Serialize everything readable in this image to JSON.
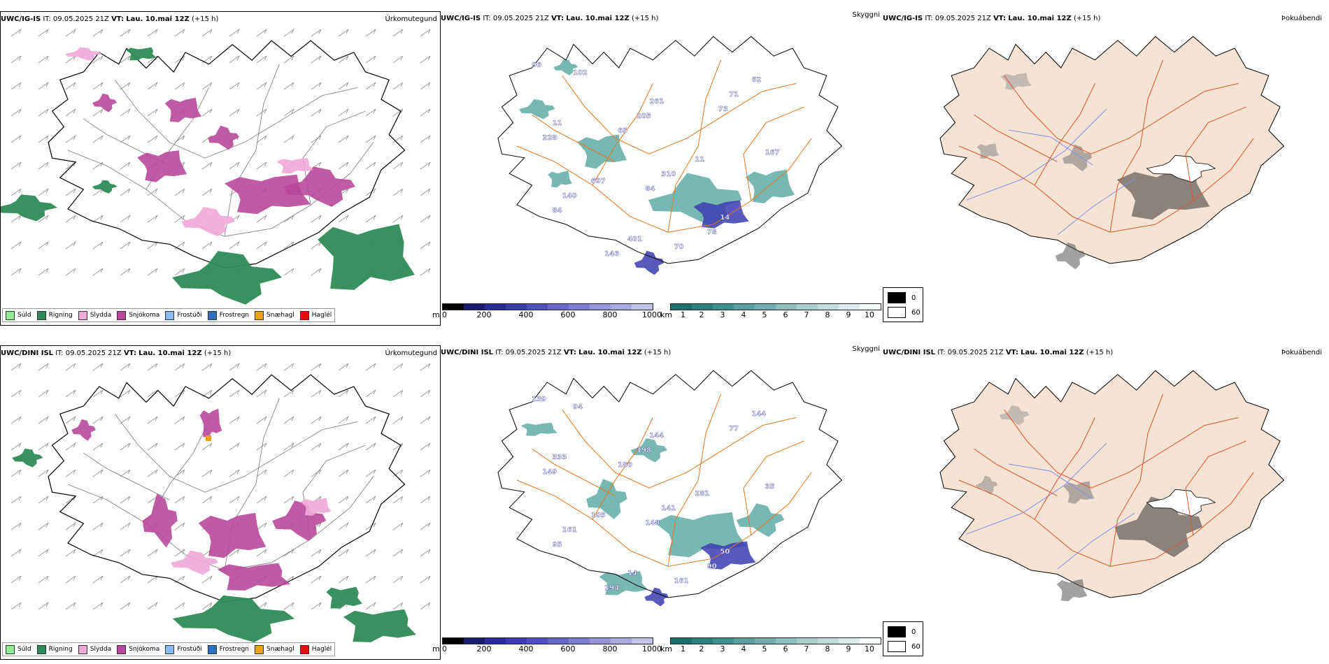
{
  "panels": [
    {
      "id": "top-left",
      "model": "UWC/IG-IS",
      "it_label": "IT:",
      "it_value": "09.05.2025 21Z",
      "vt_label": "VT:",
      "vt_value": "Lau. 10.mai 12Z",
      "lead": "(+15 h)",
      "title": "Úrkomutegund",
      "type": "precip"
    },
    {
      "id": "top-mid",
      "model": "UWC/IG-IS",
      "it_label": "IT:",
      "it_value": "09.05.2025 21Z",
      "vt_label": "VT:",
      "vt_value": "Lau. 10.mai 12Z",
      "lead": "(+15 h)",
      "title": "Skyggni",
      "type": "visibility"
    },
    {
      "id": "top-right",
      "model": "UWC/IG-IS",
      "it_label": "IT:",
      "it_value": "09.05.2025 21Z",
      "vt_label": "VT:",
      "vt_value": "Lau. 10.mai 12Z",
      "lead": "(+15 h)",
      "title": "Þokuábendi",
      "type": "fog"
    },
    {
      "id": "bottom-left",
      "model": "UWC/DINI ISL",
      "it_label": "IT:",
      "it_value": "09.05.2025 21Z",
      "vt_label": "VT:",
      "vt_value": "Lau. 10.mai 12Z",
      "lead": "(+15 h)",
      "title": "Úrkomutegund",
      "type": "precip"
    },
    {
      "id": "bottom-mid",
      "model": "UWC/DINI ISL",
      "it_label": "IT:",
      "it_value": "09.05.2025 21Z",
      "vt_label": "VT:",
      "vt_value": "Lau. 10.mai 12Z",
      "lead": "(+15 h)",
      "title": "Skyggni",
      "type": "visibility"
    },
    {
      "id": "bottom-right",
      "model": "UWC/DINI ISL",
      "it_label": "IT:",
      "it_value": "09.05.2025 21Z",
      "vt_label": "VT:",
      "vt_value": "Lau. 10.mai 12Z",
      "lead": "(+15 h)",
      "title": "Þokuábendi",
      "type": "fog"
    }
  ],
  "precip_legend": [
    {
      "label": "Súld",
      "color": "#90ee90"
    },
    {
      "label": "Rigning",
      "color": "#2e8b57"
    },
    {
      "label": "Slydda",
      "color": "#f0a8d8"
    },
    {
      "label": "Snjókoma",
      "color": "#b8489a"
    },
    {
      "label": "Frostúði",
      "color": "#87bdf0"
    },
    {
      "label": "Frostregn",
      "color": "#2f6fc0"
    },
    {
      "label": "Snæhagl",
      "color": "#f0a020"
    },
    {
      "label": "Haglél",
      "color": "#e01010"
    }
  ],
  "ceiling_bar": {
    "unit": "m",
    "ticks": [
      "0",
      "200",
      "400",
      "600",
      "800",
      "1000"
    ],
    "colors": [
      "#000000",
      "#1a1a6e",
      "#2a2a9a",
      "#3c3cb0",
      "#5050c0",
      "#6868c8",
      "#7e7ed0",
      "#9595d8",
      "#abaae0",
      "#c3c3ea"
    ]
  },
  "visibility_bar": {
    "unit": "km",
    "ticks": [
      "1",
      "2",
      "3",
      "4",
      "5",
      "6",
      "7",
      "8",
      "9",
      "10"
    ],
    "colors": [
      "#1f6e6e",
      "#2f7f7f",
      "#3f8f8f",
      "#5a9e9e",
      "#74aeae",
      "#8fbebe",
      "#a9cdcd",
      "#c3dcdc",
      "#dcebeb",
      "#f6fbfb"
    ]
  },
  "fog_legend": {
    "high_label": "0",
    "low_label": "60"
  },
  "visibility_labels_top": [
    "96",
    "11",
    "697",
    "401",
    "261",
    "11",
    "14",
    "62",
    "228",
    "140",
    "146",
    "205",
    "310",
    "78",
    "71",
    "167",
    "84",
    "102",
    "65",
    "84",
    "70",
    "73"
  ],
  "visibility_labels_bottom": [
    "139",
    "333",
    "105",
    "14",
    "144",
    "281",
    "50",
    "144",
    "149",
    "161",
    "194",
    "198",
    "141",
    "90",
    "77",
    "35",
    "95",
    "94",
    "180",
    "148",
    "161"
  ],
  "colors": {
    "coast": "#000000",
    "road": "#e8761e",
    "fog_land": "#f6e3d3",
    "fog_road": "#e0552a",
    "river": "#7e8fe8",
    "rain": "#2e8b57",
    "snow": "#b8489a",
    "sleet": "#f0a8d8",
    "vis_teal": "#3e9a92",
    "vis_blue": "#3c3cb0"
  }
}
